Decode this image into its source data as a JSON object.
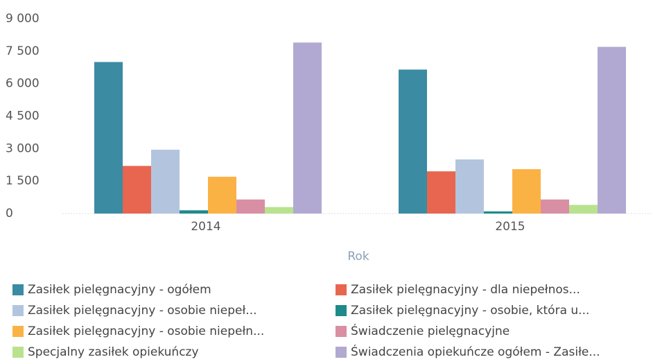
{
  "chart_data": {
    "type": "bar",
    "x_label": "Rok",
    "categories": [
      "2014",
      "2015"
    ],
    "ylim": [
      0,
      9000
    ],
    "yticks": [
      0,
      {
        "value": 1500,
        "label": "1 500"
      },
      {
        "value": 3000,
        "label": "3 000"
      },
      {
        "value": 4500,
        "label": "4 500"
      },
      {
        "value": 6000,
        "label": "6 000"
      },
      {
        "value": 7500,
        "label": "7 500"
      },
      {
        "value": 9000,
        "label": "9 000"
      }
    ],
    "series": [
      {
        "name": "Zasiłek pielęgnacyjny - ogółem",
        "color": "#3b8ba3",
        "values": [
          7000,
          6650
        ]
      },
      {
        "name": "Zasiłek pielęgnacyjny - dla niepełnos...",
        "color": "#e8664f",
        "values": [
          2200,
          1950
        ]
      },
      {
        "name": "Zasiłek pielęgnacyjny - osobie niepeł...",
        "color": "#b3c5de",
        "values": [
          2950,
          2500
        ]
      },
      {
        "name": "Zasiłek pielęgnacyjny - osobie, która u...",
        "color": "#1f8a8c",
        "values": [
          150,
          100
        ]
      },
      {
        "name": "Zasiłek pielęgnacyjny -  osobie niepełn...",
        "color": "#fbb245",
        "values": [
          1700,
          2050
        ]
      },
      {
        "name": "Świadczenie pielęgnacyjne",
        "color": "#d98fa3",
        "values": [
          650,
          650
        ]
      },
      {
        "name": "Specjalny zasiłek opiekuńczy",
        "color": "#b9e28e",
        "values": [
          300,
          400
        ]
      },
      {
        "name": "Świadczenia opiekuńcze ogółem - Zasiłe...",
        "color": "#b1a9d2",
        "values": [
          7900,
          7700
        ]
      }
    ]
  }
}
